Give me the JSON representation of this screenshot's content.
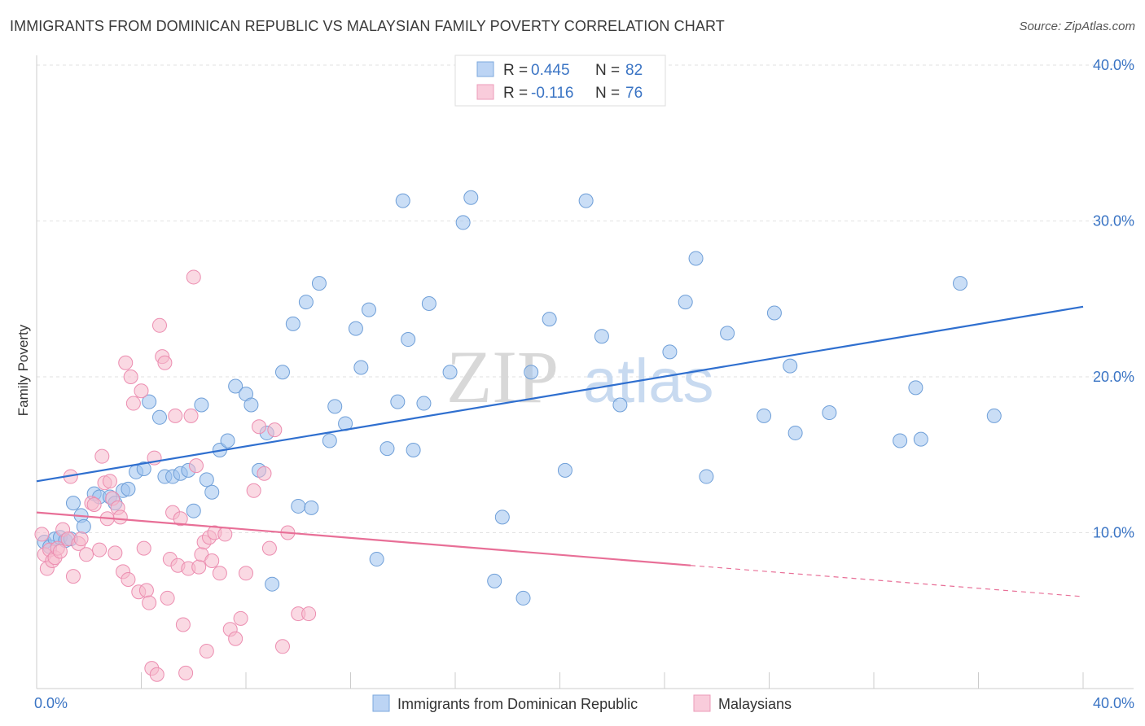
{
  "header": {
    "title": "IMMIGRANTS FROM DOMINICAN REPUBLIC VS MALAYSIAN FAMILY POVERTY CORRELATION CHART",
    "source": "Source: ZipAtlas.com"
  },
  "watermark": {
    "zip": "ZIP",
    "atlas": "atlas"
  },
  "chart_data": {
    "type": "scatter",
    "ylabel": "Family Poverty",
    "xlabel": "",
    "xlim": [
      0,
      40
    ],
    "ylim": [
      0,
      40
    ],
    "x_tick_labels": [
      "0.0%",
      "40.0%"
    ],
    "y_ticks": [
      10,
      20,
      30,
      40
    ],
    "y_tick_labels": [
      "10.0%",
      "20.0%",
      "30.0%",
      "40.0%"
    ],
    "grid": true,
    "legend_position": "top-center",
    "legend": [
      {
        "r_label": "R = ",
        "r_value": "0.445",
        "n_label": "N = ",
        "n_value": "82"
      },
      {
        "r_label": "R = ",
        "r_value": "-0.116",
        "n_label": "N = ",
        "n_value": "76"
      }
    ],
    "series": [
      {
        "name": "Immigrants from Dominican Republic",
        "color": "#9fc3ee",
        "stroke": "#6f9fd8",
        "line_color": "#2f6fcf",
        "trend": {
          "x0": 0,
          "y0": 13.3,
          "x1": 40,
          "y1": 24.5
        },
        "points": [
          [
            0.3,
            9.4
          ],
          [
            0.5,
            9.1
          ],
          [
            0.7,
            9.6
          ],
          [
            0.9,
            9.7
          ],
          [
            1.1,
            9.5
          ],
          [
            1.3,
            9.6
          ],
          [
            1.4,
            11.9
          ],
          [
            1.7,
            11.1
          ],
          [
            1.8,
            10.4
          ],
          [
            2.2,
            12.5
          ],
          [
            2.4,
            12.3
          ],
          [
            2.8,
            12.3
          ],
          [
            3.0,
            11.9
          ],
          [
            3.3,
            12.7
          ],
          [
            3.5,
            12.8
          ],
          [
            3.8,
            13.9
          ],
          [
            4.1,
            14.1
          ],
          [
            4.3,
            18.4
          ],
          [
            4.7,
            17.4
          ],
          [
            4.9,
            13.6
          ],
          [
            5.2,
            13.6
          ],
          [
            5.5,
            13.8
          ],
          [
            5.8,
            14.0
          ],
          [
            6.0,
            11.4
          ],
          [
            6.3,
            18.2
          ],
          [
            6.5,
            13.4
          ],
          [
            6.7,
            12.6
          ],
          [
            7.0,
            15.3
          ],
          [
            7.3,
            15.9
          ],
          [
            7.6,
            19.4
          ],
          [
            8.0,
            18.9
          ],
          [
            8.2,
            18.2
          ],
          [
            8.5,
            14.0
          ],
          [
            8.8,
            16.4
          ],
          [
            9.0,
            6.7
          ],
          [
            9.4,
            20.3
          ],
          [
            9.8,
            23.4
          ],
          [
            10.0,
            11.7
          ],
          [
            10.3,
            24.8
          ],
          [
            10.5,
            11.6
          ],
          [
            10.8,
            26.0
          ],
          [
            11.2,
            15.9
          ],
          [
            11.4,
            18.1
          ],
          [
            11.8,
            17.0
          ],
          [
            12.2,
            23.1
          ],
          [
            12.4,
            20.6
          ],
          [
            12.7,
            24.3
          ],
          [
            13.0,
            8.3
          ],
          [
            13.4,
            15.4
          ],
          [
            13.8,
            18.4
          ],
          [
            14.0,
            31.3
          ],
          [
            14.2,
            22.4
          ],
          [
            14.4,
            15.3
          ],
          [
            14.8,
            18.3
          ],
          [
            15.0,
            24.7
          ],
          [
            15.8,
            20.3
          ],
          [
            16.3,
            29.9
          ],
          [
            16.6,
            31.5
          ],
          [
            17.5,
            6.9
          ],
          [
            17.8,
            11.0
          ],
          [
            18.6,
            5.8
          ],
          [
            18.9,
            20.3
          ],
          [
            19.6,
            23.7
          ],
          [
            20.2,
            14.0
          ],
          [
            21.0,
            31.3
          ],
          [
            21.6,
            22.6
          ],
          [
            22.3,
            18.2
          ],
          [
            24.2,
            21.6
          ],
          [
            24.8,
            24.8
          ],
          [
            25.2,
            27.6
          ],
          [
            25.6,
            13.6
          ],
          [
            26.4,
            22.8
          ],
          [
            27.8,
            17.5
          ],
          [
            28.2,
            24.1
          ],
          [
            28.8,
            20.7
          ],
          [
            29.0,
            16.4
          ],
          [
            30.3,
            17.7
          ],
          [
            33.0,
            15.9
          ],
          [
            33.6,
            19.3
          ],
          [
            33.8,
            16.0
          ],
          [
            35.3,
            26.0
          ],
          [
            36.6,
            17.5
          ]
        ]
      },
      {
        "name": "Malaysians",
        "color": "#f6b9cc",
        "stroke": "#ec8db0",
        "line_color": "#e86f97",
        "trend": {
          "x0": 0,
          "y0": 11.3,
          "x1": 25.0,
          "y1": 7.9
        },
        "trend_dashed": {
          "x0": 25.0,
          "y0": 7.9,
          "x1": 40,
          "y1": 5.9
        },
        "points": [
          [
            0.2,
            9.9
          ],
          [
            0.3,
            8.6
          ],
          [
            0.4,
            7.7
          ],
          [
            0.5,
            8.9
          ],
          [
            0.6,
            8.2
          ],
          [
            0.7,
            8.4
          ],
          [
            0.8,
            9.0
          ],
          [
            0.9,
            8.8
          ],
          [
            1.0,
            10.2
          ],
          [
            1.2,
            9.6
          ],
          [
            1.3,
            13.6
          ],
          [
            1.4,
            7.2
          ],
          [
            1.6,
            9.3
          ],
          [
            1.7,
            9.6
          ],
          [
            1.9,
            8.6
          ],
          [
            2.1,
            11.9
          ],
          [
            2.2,
            11.8
          ],
          [
            2.4,
            8.9
          ],
          [
            2.5,
            14.9
          ],
          [
            2.6,
            13.2
          ],
          [
            2.7,
            10.9
          ],
          [
            2.8,
            13.3
          ],
          [
            2.9,
            12.2
          ],
          [
            3.0,
            8.7
          ],
          [
            3.1,
            11.6
          ],
          [
            3.2,
            11.0
          ],
          [
            3.3,
            7.5
          ],
          [
            3.4,
            20.9
          ],
          [
            3.5,
            7.0
          ],
          [
            3.6,
            20.0
          ],
          [
            3.7,
            18.3
          ],
          [
            3.9,
            6.2
          ],
          [
            4.0,
            19.1
          ],
          [
            4.1,
            9.0
          ],
          [
            4.2,
            6.3
          ],
          [
            4.3,
            5.5
          ],
          [
            4.4,
            1.3
          ],
          [
            4.5,
            14.8
          ],
          [
            4.6,
            0.9
          ],
          [
            4.7,
            23.3
          ],
          [
            4.8,
            21.3
          ],
          [
            4.9,
            20.9
          ],
          [
            5.0,
            5.8
          ],
          [
            5.1,
            8.3
          ],
          [
            5.2,
            11.3
          ],
          [
            5.3,
            17.5
          ],
          [
            5.4,
            7.9
          ],
          [
            5.5,
            10.9
          ],
          [
            5.6,
            4.1
          ],
          [
            5.7,
            1.0
          ],
          [
            5.8,
            7.7
          ],
          [
            5.9,
            17.5
          ],
          [
            6.0,
            26.4
          ],
          [
            6.1,
            14.3
          ],
          [
            6.2,
            7.8
          ],
          [
            6.3,
            8.6
          ],
          [
            6.4,
            9.4
          ],
          [
            6.5,
            2.4
          ],
          [
            6.6,
            9.7
          ],
          [
            6.7,
            8.2
          ],
          [
            6.8,
            10.0
          ],
          [
            7.0,
            7.4
          ],
          [
            7.2,
            9.9
          ],
          [
            7.4,
            3.8
          ],
          [
            7.6,
            3.2
          ],
          [
            7.8,
            4.5
          ],
          [
            8.0,
            7.4
          ],
          [
            8.3,
            12.7
          ],
          [
            8.5,
            16.8
          ],
          [
            8.7,
            13.8
          ],
          [
            8.9,
            9.0
          ],
          [
            9.1,
            16.6
          ],
          [
            9.4,
            2.7
          ],
          [
            9.6,
            10.0
          ],
          [
            10.0,
            4.8
          ],
          [
            10.4,
            4.8
          ]
        ]
      }
    ]
  },
  "bottom_legend": [
    {
      "label": "Immigrants from Dominican Republic"
    },
    {
      "label": "Malaysians"
    }
  ]
}
